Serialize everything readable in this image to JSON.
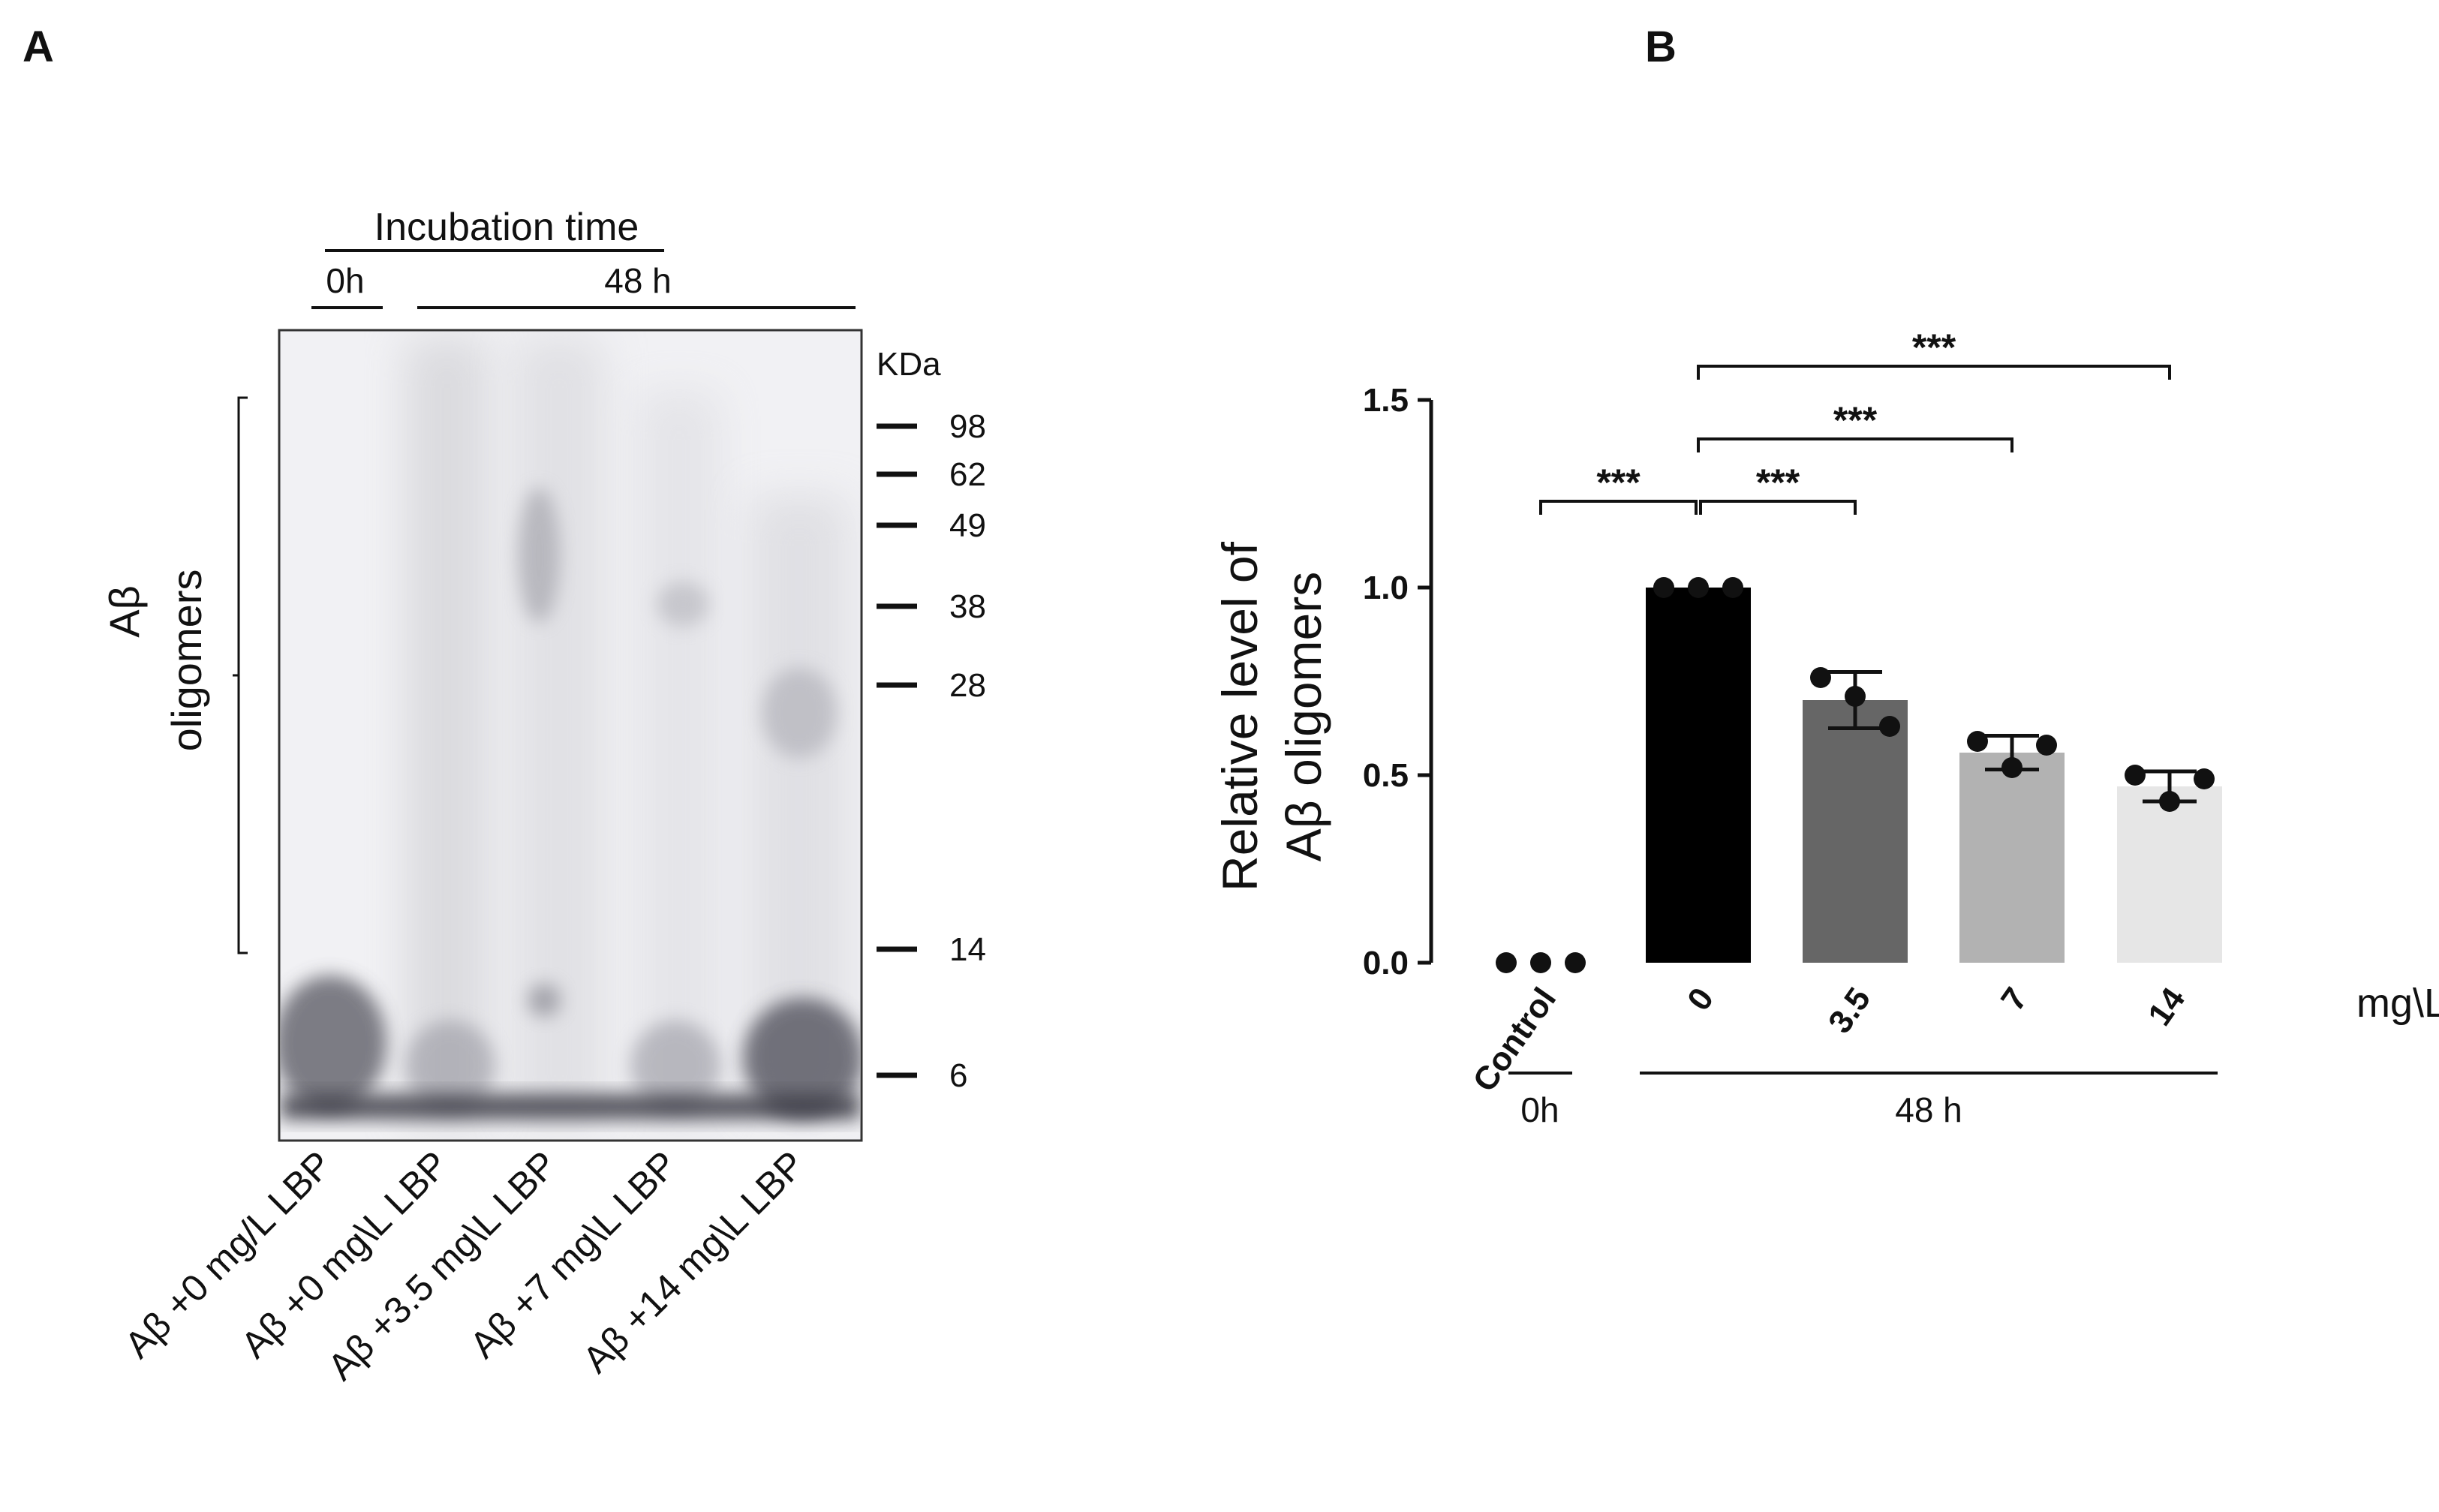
{
  "panel_a": {
    "label": "A",
    "incubation_title": "Incubation time",
    "time_0": "0h",
    "time_48": "48 h",
    "kda_label": "KDa",
    "markers": [
      "98",
      "62",
      "49",
      "38",
      "28",
      "14",
      "6"
    ],
    "bracket_label_line1": "Aβ",
    "bracket_label_line2": "oligomers",
    "lanes": [
      "Aβ +0 mg/L LBP",
      "Aβ +0 mg\\L LBP",
      "Aβ +3.5 mg\\L LBP",
      "Aβ +7 mg\\L LBP",
      "Aβ +14 mg\\L LBP"
    ]
  },
  "panel_b": {
    "label": "B"
  },
  "chart_data": {
    "type": "bar",
    "categories": [
      "Control",
      "0",
      "3.5",
      "7",
      "14"
    ],
    "values": [
      0.0,
      1.0,
      0.7,
      0.56,
      0.47
    ],
    "errors": [
      0.0,
      0.0,
      0.075,
      0.045,
      0.04
    ],
    "points": [
      [
        0.0,
        0.0,
        0.0
      ],
      [
        1.0,
        1.0,
        1.0
      ],
      [
        0.76,
        0.71,
        0.63
      ],
      [
        0.59,
        0.52,
        0.58
      ],
      [
        0.5,
        0.43,
        0.49
      ]
    ],
    "bar_colors": [
      "#000000",
      "#000000",
      "#666666",
      "#b2b2b2",
      "#e6e6e6"
    ],
    "ylabel_line1": "Relative level of",
    "ylabel_line2": "Aβ oligomers",
    "yticks": [
      "0.0",
      "0.5",
      "1.0",
      "1.5"
    ],
    "ylim": [
      0,
      1.5
    ],
    "unit": "mg\\L",
    "group_0h": "0h",
    "group_48h": "48 h",
    "significance": [
      {
        "from": 0,
        "to": 1,
        "label": "***"
      },
      {
        "from": 1,
        "to": 2,
        "label": "***"
      },
      {
        "from": 1,
        "to": 3,
        "label": "***"
      },
      {
        "from": 1,
        "to": 4,
        "label": "***"
      }
    ]
  }
}
